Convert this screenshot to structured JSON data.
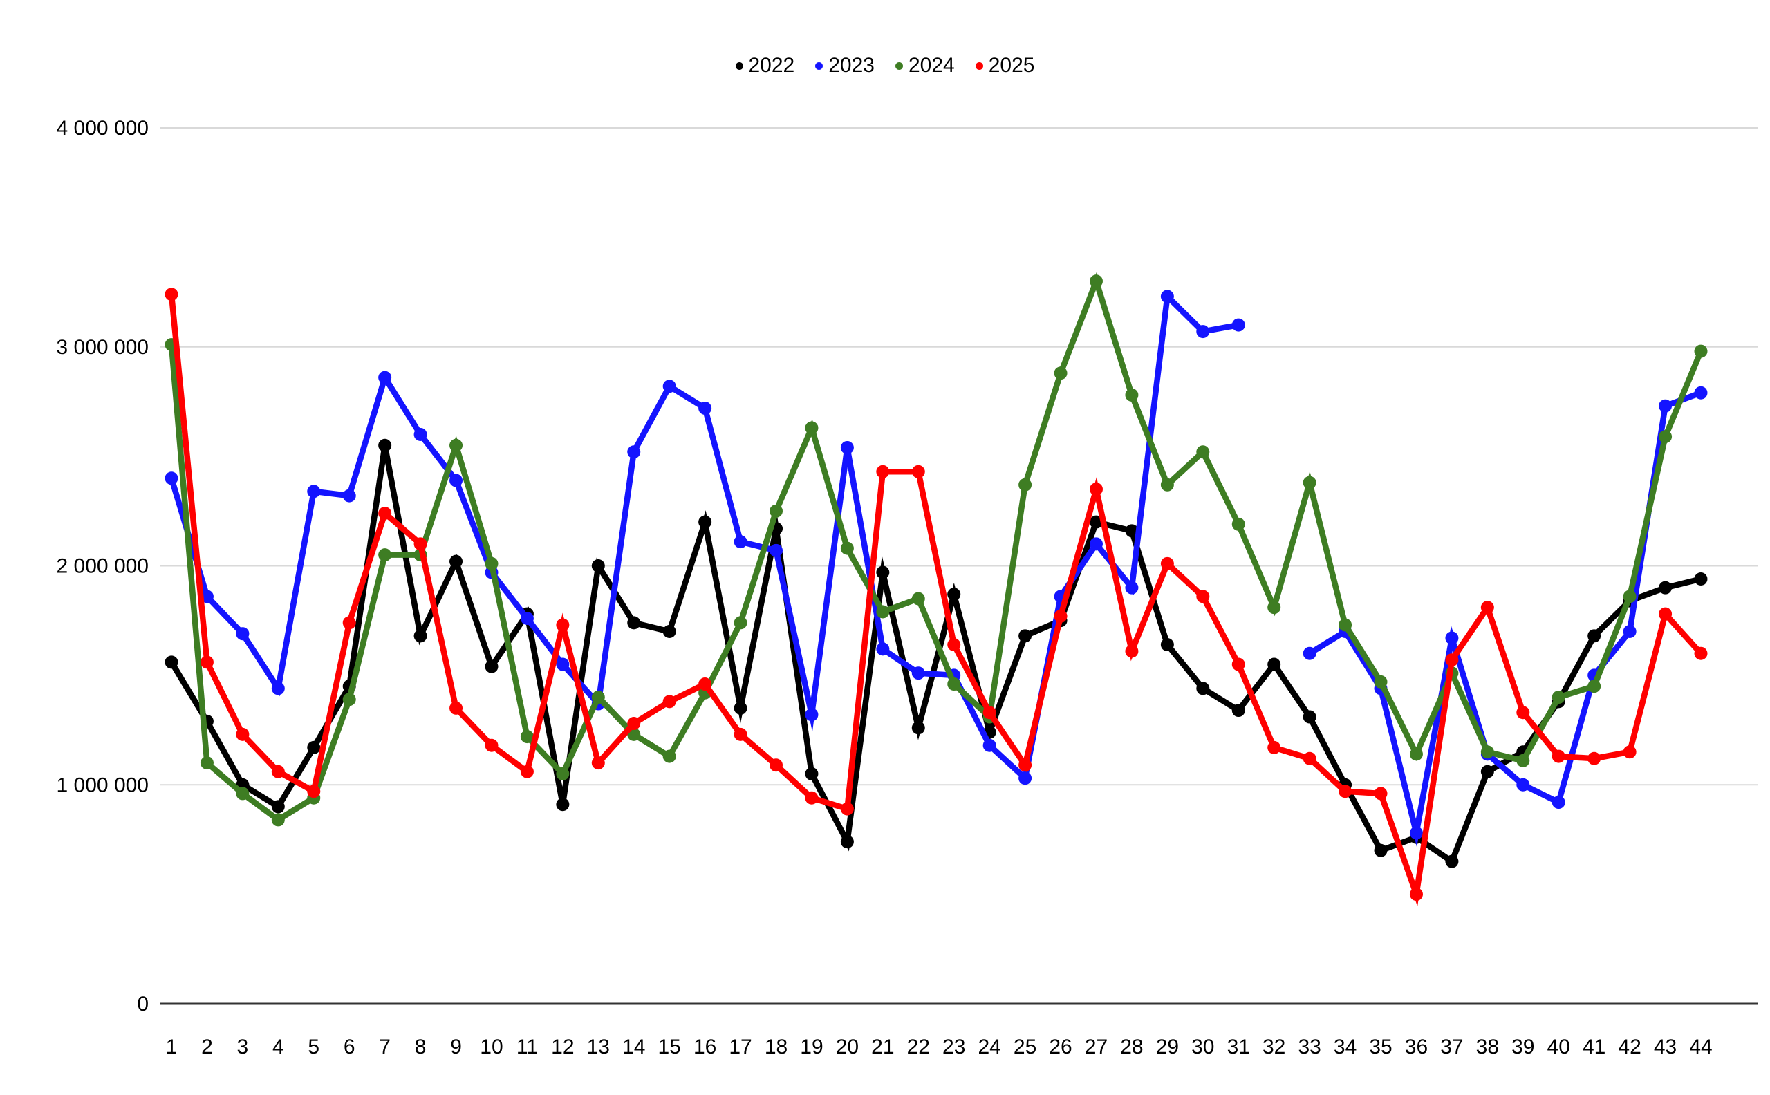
{
  "chart_data": {
    "type": "line",
    "title": "",
    "xlabel": "",
    "ylabel": "",
    "ylim": [
      0,
      4000000
    ],
    "grid": "horizontal",
    "legend_position": "top-center",
    "background_color": "#ffffff",
    "grid_color": "#d9d9d9",
    "axis_line_color": "#333333",
    "label_color": "#000000",
    "y_ticks": [
      {
        "value": 4000000,
        "label": "4 000 000"
      },
      {
        "value": 3000000,
        "label": "3 000 000"
      },
      {
        "value": 2000000,
        "label": "2 000 000"
      },
      {
        "value": 1000000,
        "label": "1 000 000"
      },
      {
        "value": 0,
        "label": "0"
      }
    ],
    "x": [
      1,
      2,
      3,
      4,
      5,
      6,
      7,
      8,
      9,
      10,
      11,
      12,
      13,
      14,
      15,
      16,
      17,
      18,
      19,
      20,
      21,
      22,
      23,
      24,
      25,
      26,
      27,
      28,
      29,
      30,
      31,
      32,
      33,
      34,
      35,
      36,
      37,
      38,
      39,
      40,
      41,
      42,
      43,
      44
    ],
    "series": [
      {
        "name": "2022",
        "color": "#000000",
        "values": [
          1560000,
          1290000,
          1000000,
          900000,
          1170000,
          1450000,
          2550000,
          1680000,
          2020000,
          1540000,
          1780000,
          910000,
          2000000,
          1740000,
          1700000,
          2200000,
          1350000,
          2170000,
          1050000,
          740000,
          1970000,
          1260000,
          1870000,
          1240000,
          1680000,
          1750000,
          2200000,
          2160000,
          1640000,
          1440000,
          1340000,
          1550000,
          1310000,
          1000000,
          700000,
          760000,
          650000,
          1060000,
          1150000,
          1380000,
          1680000,
          1840000,
          1900000,
          1940000
        ]
      },
      {
        "name": "2023",
        "color": "#1414ff",
        "values": [
          2400000,
          1860000,
          1690000,
          1440000,
          2340000,
          2320000,
          2860000,
          2600000,
          2390000,
          1970000,
          1760000,
          1550000,
          1370000,
          2520000,
          2820000,
          2720000,
          2110000,
          2070000,
          1320000,
          2540000,
          1620000,
          1510000,
          1500000,
          1180000,
          1030000,
          1860000,
          2100000,
          1900000,
          3230000,
          3070000,
          3100000,
          null,
          1600000,
          1700000,
          1440000,
          780000,
          1670000,
          1140000,
          1000000,
          920000,
          1500000,
          1700000,
          2730000,
          2790000
        ]
      },
      {
        "name": "2024",
        "color": "#3e7d23",
        "values": [
          3010000,
          1100000,
          960000,
          840000,
          940000,
          1390000,
          2050000,
          2050000,
          2550000,
          2010000,
          1220000,
          1050000,
          1400000,
          1230000,
          1130000,
          1420000,
          1740000,
          2250000,
          2630000,
          2080000,
          1790000,
          1850000,
          1460000,
          1310000,
          2370000,
          2880000,
          3300000,
          2780000,
          2370000,
          2520000,
          2190000,
          1810000,
          2380000,
          1730000,
          1470000,
          1140000,
          1510000,
          1150000,
          1110000,
          1400000,
          1450000,
          1860000,
          2590000,
          2980000
        ]
      },
      {
        "name": "2025",
        "color": "#ff0000",
        "values": [
          3240000,
          1560000,
          1230000,
          1060000,
          970000,
          1740000,
          2240000,
          2100000,
          1350000,
          1180000,
          1060000,
          1730000,
          1100000,
          1280000,
          1380000,
          1460000,
          1230000,
          1090000,
          940000,
          890000,
          2430000,
          2430000,
          1640000,
          1330000,
          1090000,
          1770000,
          2350000,
          1610000,
          2010000,
          1860000,
          1550000,
          1170000,
          1120000,
          970000,
          960000,
          500000,
          1570000,
          1810000,
          1330000,
          1130000,
          1120000,
          1150000,
          1780000,
          1600000
        ]
      }
    ]
  }
}
